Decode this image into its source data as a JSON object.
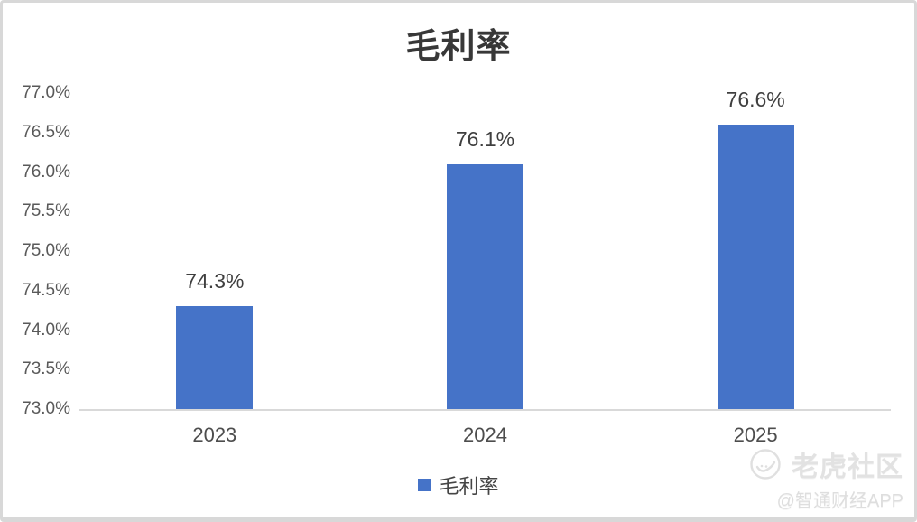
{
  "chart_data": {
    "type": "bar",
    "title": "毛利率",
    "categories": [
      "2023",
      "2024",
      "2025"
    ],
    "series": [
      {
        "name": "毛利率",
        "values": [
          74.3,
          76.1,
          76.6
        ]
      }
    ],
    "value_labels": [
      "74.3%",
      "76.1%",
      "76.6%"
    ],
    "xlabel": "",
    "ylabel": "",
    "ylim": [
      73.0,
      77.0
    ],
    "ytick_step": 0.5,
    "ytick_labels": [
      "73.0%",
      "73.5%",
      "74.0%",
      "74.5%",
      "75.0%",
      "75.5%",
      "76.0%",
      "76.5%",
      "77.0%"
    ],
    "grid": false,
    "legend_position": "bottom",
    "bar_color": "#4573C8"
  },
  "legend": {
    "label": "毛利率"
  },
  "watermark": {
    "brand": "老虎社区",
    "handle": "@智通财经APP",
    "logo": "tiger-circle-icon"
  },
  "colors": {
    "bar": "#4573C8",
    "axis_line": "#D9D9D9",
    "tick_text": "#595959",
    "label_text": "#3F3F3F",
    "frame_border": "#D8D8D8",
    "watermark": "#E2E2E2"
  }
}
